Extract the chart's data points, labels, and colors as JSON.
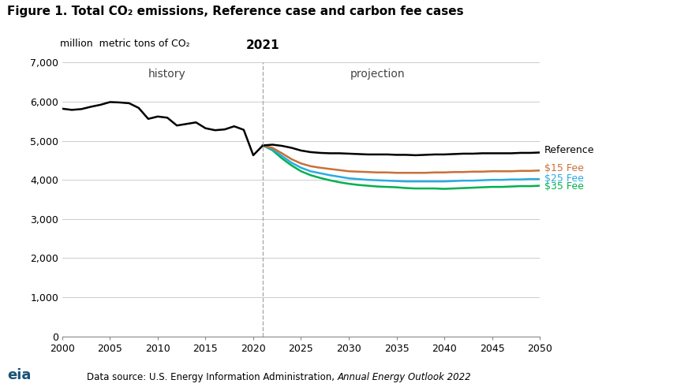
{
  "title": "Figure 1. Total CO₂ emissions, Reference case and carbon fee cases",
  "ylabel": "million  metric tons of CO₂",
  "ylim": [
    0,
    7000
  ],
  "yticks": [
    0,
    1000,
    2000,
    3000,
    4000,
    5000,
    6000,
    7000
  ],
  "xlim": [
    2000,
    2050
  ],
  "xticks": [
    2000,
    2005,
    2010,
    2015,
    2020,
    2025,
    2030,
    2035,
    2040,
    2045,
    2050
  ],
  "divider_year": 2021,
  "history_label": "history",
  "projection_label": "projection",
  "year_label": "2021",
  "reference_color": "#000000",
  "fee15_color": "#C87137",
  "fee25_color": "#29ABE2",
  "fee35_color": "#00B050",
  "reference_label": "Reference",
  "fee15_label": "$15 Fee",
  "fee25_label": "$25 Fee",
  "fee35_label": "$35 Fee",
  "history_years": [
    2000,
    2001,
    2002,
    2003,
    2004,
    2005,
    2006,
    2007,
    2008,
    2009,
    2010,
    2011,
    2012,
    2013,
    2014,
    2015,
    2016,
    2017,
    2018,
    2019,
    2020,
    2021
  ],
  "history_values": [
    5820,
    5790,
    5810,
    5870,
    5920,
    5990,
    5980,
    5960,
    5840,
    5560,
    5620,
    5590,
    5390,
    5430,
    5470,
    5320,
    5270,
    5290,
    5370,
    5280,
    4630,
    4880
  ],
  "ref_proj_years": [
    2021,
    2022,
    2023,
    2024,
    2025,
    2026,
    2027,
    2028,
    2029,
    2030,
    2031,
    2032,
    2033,
    2034,
    2035,
    2036,
    2037,
    2038,
    2039,
    2040,
    2041,
    2042,
    2043,
    2044,
    2045,
    2046,
    2047,
    2048,
    2049,
    2050
  ],
  "ref_proj_values": [
    4880,
    4900,
    4870,
    4820,
    4750,
    4710,
    4690,
    4680,
    4680,
    4670,
    4660,
    4650,
    4650,
    4650,
    4640,
    4640,
    4630,
    4640,
    4650,
    4650,
    4660,
    4670,
    4670,
    4680,
    4680,
    4680,
    4680,
    4690,
    4690,
    4700
  ],
  "fee15_years": [
    2021,
    2022,
    2023,
    2024,
    2025,
    2026,
    2027,
    2028,
    2029,
    2030,
    2031,
    2032,
    2033,
    2034,
    2035,
    2036,
    2037,
    2038,
    2039,
    2040,
    2041,
    2042,
    2043,
    2044,
    2045,
    2046,
    2047,
    2048,
    2049,
    2050
  ],
  "fee15_values": [
    4880,
    4820,
    4680,
    4530,
    4420,
    4350,
    4310,
    4280,
    4250,
    4220,
    4210,
    4200,
    4190,
    4190,
    4180,
    4180,
    4180,
    4180,
    4190,
    4190,
    4200,
    4200,
    4210,
    4210,
    4220,
    4220,
    4220,
    4230,
    4230,
    4240
  ],
  "fee25_years": [
    2021,
    2022,
    2023,
    2024,
    2025,
    2026,
    2027,
    2028,
    2029,
    2030,
    2031,
    2032,
    2033,
    2034,
    2035,
    2036,
    2037,
    2038,
    2039,
    2040,
    2041,
    2042,
    2043,
    2044,
    2045,
    2046,
    2047,
    2048,
    2049,
    2050
  ],
  "fee25_values": [
    4880,
    4790,
    4610,
    4440,
    4310,
    4220,
    4170,
    4120,
    4080,
    4040,
    4020,
    4000,
    3990,
    3980,
    3970,
    3960,
    3960,
    3960,
    3960,
    3960,
    3970,
    3980,
    3980,
    3990,
    4000,
    4000,
    4010,
    4010,
    4020,
    4020
  ],
  "fee35_years": [
    2021,
    2022,
    2023,
    2024,
    2025,
    2026,
    2027,
    2028,
    2029,
    2030,
    2031,
    2032,
    2033,
    2034,
    2035,
    2036,
    2037,
    2038,
    2039,
    2040,
    2041,
    2042,
    2043,
    2044,
    2045,
    2046,
    2047,
    2048,
    2049,
    2050
  ],
  "fee35_values": [
    4880,
    4760,
    4550,
    4370,
    4220,
    4120,
    4050,
    3990,
    3940,
    3900,
    3870,
    3850,
    3830,
    3820,
    3810,
    3790,
    3780,
    3780,
    3780,
    3770,
    3780,
    3790,
    3800,
    3810,
    3820,
    3820,
    3830,
    3840,
    3840,
    3850
  ],
  "footer_text_regular": "Data source: U.S. Energy Information Administration, ",
  "footer_text_italic": "Annual Energy Outlook 2022",
  "background_color": "#ffffff",
  "grid_color": "#cccccc",
  "divider_color": "#aaaaaa"
}
